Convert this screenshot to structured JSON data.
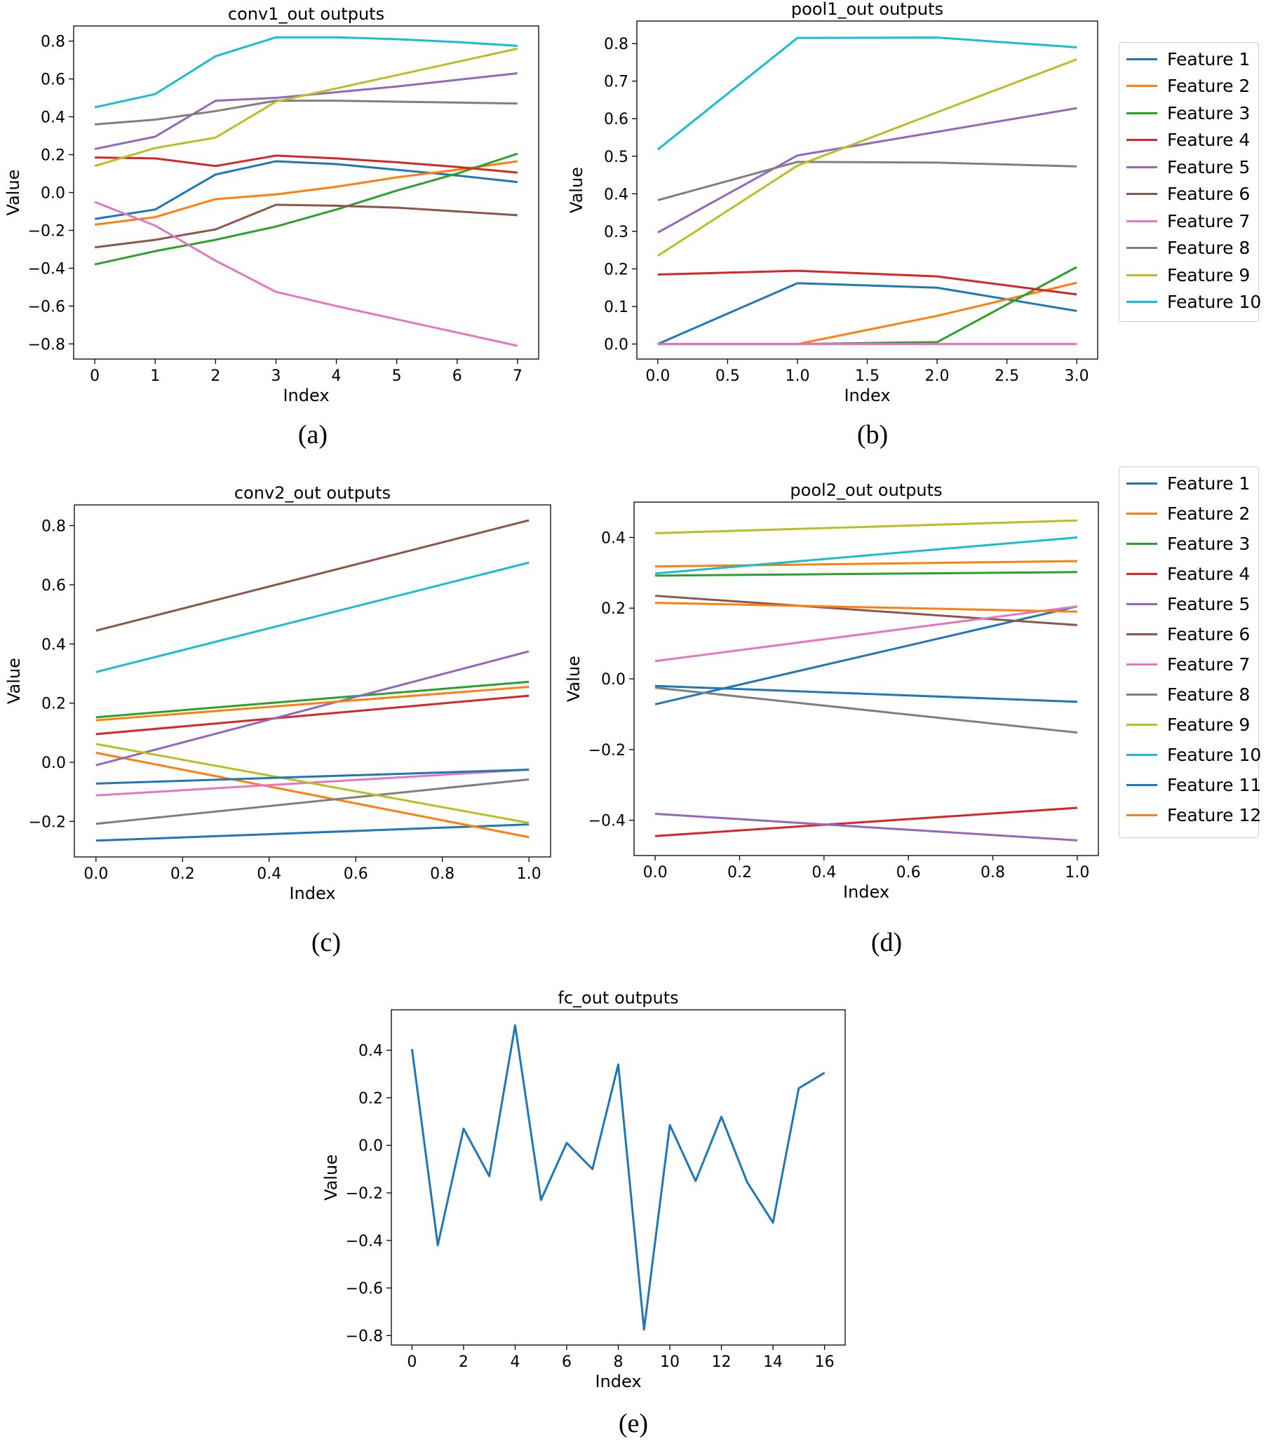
{
  "figure": {
    "colors": [
      "#1f77b4",
      "#ff7f0e",
      "#2ca02c",
      "#d62728",
      "#9467bd",
      "#8c564b",
      "#e377c2",
      "#7f7f7f",
      "#bcbd22",
      "#17becf",
      "#1f77b4",
      "#ff7f0e"
    ]
  },
  "captions": {
    "a": "(a)",
    "b": "(b)",
    "c": "(c)",
    "d": "(d)",
    "e": "(e)"
  },
  "chart_data": [
    {
      "id": "a",
      "type": "line",
      "title": "conv1_out outputs",
      "xlabel": "Index",
      "ylabel": "Value",
      "xlim": [
        -0.35,
        7.35
      ],
      "ylim": [
        -0.88,
        0.88
      ],
      "xticks": [
        0,
        1,
        2,
        3,
        4,
        5,
        6,
        7
      ],
      "xticklabels": [
        "0",
        "1",
        "2",
        "3",
        "4",
        "5",
        "6",
        "7"
      ],
      "yticks": [
        -0.8,
        -0.6,
        -0.4,
        -0.2,
        0.0,
        0.2,
        0.4,
        0.6,
        0.8
      ],
      "yticklabels": [
        "−0.8",
        "−0.6",
        "−0.4",
        "−0.2",
        "0.0",
        "0.2",
        "0.4",
        "0.6",
        "0.8"
      ],
      "x": [
        0,
        1,
        2,
        3,
        4,
        5,
        6,
        7
      ],
      "series": [
        {
          "values": [
            -0.14,
            -0.09,
            0.095,
            0.165,
            0.15,
            0.12,
            0.09,
            0.055
          ]
        },
        {
          "values": [
            -0.17,
            -0.13,
            -0.035,
            -0.01,
            0.03,
            0.08,
            0.12,
            0.165
          ]
        },
        {
          "values": [
            -0.38,
            -0.31,
            -0.25,
            -0.18,
            -0.09,
            0.01,
            0.1,
            0.205
          ]
        },
        {
          "values": [
            0.185,
            0.18,
            0.14,
            0.195,
            0.18,
            0.16,
            0.135,
            0.105
          ]
        },
        {
          "values": [
            0.23,
            0.295,
            0.485,
            0.5,
            0.53,
            0.56,
            0.595,
            0.63
          ]
        },
        {
          "values": [
            -0.29,
            -0.25,
            -0.195,
            -0.065,
            -0.07,
            -0.08,
            -0.1,
            -0.12
          ]
        },
        {
          "values": [
            -0.05,
            -0.175,
            -0.36,
            -0.525,
            -0.6,
            -0.67,
            -0.74,
            -0.81
          ]
        },
        {
          "values": [
            0.36,
            0.385,
            0.43,
            0.485,
            0.485,
            0.48,
            0.475,
            0.47
          ]
        },
        {
          "values": [
            0.14,
            0.235,
            0.29,
            0.48,
            0.55,
            0.62,
            0.69,
            0.76
          ]
        },
        {
          "values": [
            0.45,
            0.52,
            0.72,
            0.82,
            0.82,
            0.81,
            0.795,
            0.775
          ]
        }
      ]
    },
    {
      "id": "b",
      "type": "line",
      "title": "pool1_out outputs",
      "xlabel": "Index",
      "ylabel": "Value",
      "xlim": [
        -0.15,
        3.15
      ],
      "ylim": [
        -0.04,
        0.86
      ],
      "xticks": [
        0,
        0.5,
        1,
        1.5,
        2,
        2.5,
        3
      ],
      "xticklabels": [
        "0.0",
        "0.5",
        "1.0",
        "1.5",
        "2.0",
        "2.5",
        "3.0"
      ],
      "yticks": [
        0,
        0.1,
        0.2,
        0.3,
        0.4,
        0.5,
        0.6,
        0.7,
        0.8
      ],
      "yticklabels": [
        "0.0",
        "0.1",
        "0.2",
        "0.3",
        "0.4",
        "0.5",
        "0.6",
        "0.7",
        "0.8"
      ],
      "x": [
        0,
        1,
        2,
        3
      ],
      "legend": [
        "Feature 1",
        "Feature 2",
        "Feature 3",
        "Feature 4",
        "Feature 5",
        "Feature 6",
        "Feature 7",
        "Feature 8",
        "Feature 9",
        "Feature 10"
      ],
      "series": [
        {
          "name": "Feature 1",
          "values": [
            0.0,
            0.162,
            0.15,
            0.088
          ]
        },
        {
          "name": "Feature 2",
          "values": [
            0.0,
            0.0,
            0.075,
            0.163
          ]
        },
        {
          "name": "Feature 3",
          "values": [
            0.0,
            0.0,
            0.005,
            0.205
          ]
        },
        {
          "name": "Feature 4",
          "values": [
            0.185,
            0.195,
            0.18,
            0.132
          ]
        },
        {
          "name": "Feature 5",
          "values": [
            0.297,
            0.502,
            0.565,
            0.628
          ]
        },
        {
          "name": "Feature 6",
          "values": [
            0.0,
            0.0,
            0.0,
            0.0
          ]
        },
        {
          "name": "Feature 7",
          "values": [
            0.0,
            0.0,
            0.0,
            0.0
          ]
        },
        {
          "name": "Feature 8",
          "values": [
            0.383,
            0.485,
            0.483,
            0.473
          ]
        },
        {
          "name": "Feature 9",
          "values": [
            0.235,
            0.475,
            0.617,
            0.758
          ]
        },
        {
          "name": "Feature 10",
          "values": [
            0.518,
            0.815,
            0.816,
            0.79
          ]
        }
      ]
    },
    {
      "id": "c",
      "type": "line",
      "title": "conv2_out outputs",
      "xlabel": "Index",
      "ylabel": "Value",
      "xlim": [
        -0.05,
        1.05
      ],
      "ylim": [
        -0.32,
        0.87
      ],
      "xticks": [
        0,
        0.2,
        0.4,
        0.6,
        0.8,
        1.0
      ],
      "xticklabels": [
        "0.0",
        "0.2",
        "0.4",
        "0.6",
        "0.8",
        "1.0"
      ],
      "yticks": [
        -0.2,
        0.0,
        0.2,
        0.4,
        0.6,
        0.8
      ],
      "yticklabels": [
        "−0.2",
        "0.0",
        "0.2",
        "0.4",
        "0.6",
        "0.8"
      ],
      "x": [
        0,
        1
      ],
      "series": [
        {
          "values": [
            -0.265,
            -0.21
          ]
        },
        {
          "values": [
            0.032,
            -0.253
          ]
        },
        {
          "values": [
            0.152,
            0.272
          ]
        },
        {
          "values": [
            0.095,
            0.225
          ]
        },
        {
          "values": [
            -0.01,
            0.375
          ]
        },
        {
          "values": [
            0.445,
            0.818
          ]
        },
        {
          "values": [
            -0.112,
            -0.025
          ]
        },
        {
          "values": [
            -0.208,
            -0.058
          ]
        },
        {
          "values": [
            0.062,
            -0.205
          ]
        },
        {
          "values": [
            0.305,
            0.675
          ]
        },
        {
          "values": [
            -0.072,
            -0.025
          ]
        },
        {
          "values": [
            0.142,
            0.255
          ]
        }
      ]
    },
    {
      "id": "d",
      "type": "line",
      "title": "pool2_out outputs",
      "xlabel": "Index",
      "ylabel": "Value",
      "xlim": [
        -0.05,
        1.05
      ],
      "ylim": [
        -0.5,
        0.5
      ],
      "xticks": [
        0,
        0.2,
        0.4,
        0.6,
        0.8,
        1.0
      ],
      "xticklabels": [
        "0.0",
        "0.2",
        "0.4",
        "0.6",
        "0.8",
        "1.0"
      ],
      "yticks": [
        -0.4,
        -0.2,
        0.0,
        0.2,
        0.4
      ],
      "yticklabels": [
        "−0.4",
        "−0.2",
        "0.0",
        "0.2",
        "0.4"
      ],
      "x": [
        0,
        1
      ],
      "legend": [
        "Feature 1",
        "Feature 2",
        "Feature 3",
        "Feature 4",
        "Feature 5",
        "Feature 6",
        "Feature 7",
        "Feature 8",
        "Feature 9",
        "Feature 10",
        "Feature 11",
        "Feature 12"
      ],
      "series": [
        {
          "name": "Feature 1",
          "values": [
            -0.072,
            0.205
          ]
        },
        {
          "name": "Feature 2",
          "values": [
            0.318,
            0.333
          ]
        },
        {
          "name": "Feature 3",
          "values": [
            0.292,
            0.302
          ]
        },
        {
          "name": "Feature 4",
          "values": [
            -0.445,
            -0.365
          ]
        },
        {
          "name": "Feature 5",
          "values": [
            -0.382,
            -0.457
          ]
        },
        {
          "name": "Feature 6",
          "values": [
            0.235,
            0.152
          ]
        },
        {
          "name": "Feature 7",
          "values": [
            0.05,
            0.205
          ]
        },
        {
          "name": "Feature 8",
          "values": [
            -0.025,
            -0.152
          ]
        },
        {
          "name": "Feature 9",
          "values": [
            0.412,
            0.448
          ]
        },
        {
          "name": "Feature 10",
          "values": [
            0.298,
            0.4
          ]
        },
        {
          "name": "Feature 11",
          "values": [
            -0.02,
            -0.065
          ]
        },
        {
          "name": "Feature 12",
          "values": [
            0.215,
            0.19
          ]
        }
      ]
    },
    {
      "id": "e",
      "type": "line",
      "title": "fc_out outputs",
      "xlabel": "Index",
      "ylabel": "Value",
      "xlim": [
        -0.8,
        16.8
      ],
      "ylim": [
        -0.84,
        0.57
      ],
      "xticks": [
        0,
        2,
        4,
        6,
        8,
        10,
        12,
        14,
        16
      ],
      "xticklabels": [
        "0",
        "2",
        "4",
        "6",
        "8",
        "10",
        "12",
        "14",
        "16"
      ],
      "yticks": [
        -0.8,
        -0.6,
        -0.4,
        -0.2,
        0.0,
        0.2,
        0.4
      ],
      "yticklabels": [
        "−0.8",
        "−0.6",
        "−0.4",
        "−0.2",
        "0.0",
        "0.2",
        "0.4"
      ],
      "x": [
        0,
        1,
        2,
        3,
        4,
        5,
        6,
        7,
        8,
        9,
        10,
        11,
        12,
        13,
        14,
        15,
        16
      ],
      "series": [
        {
          "values": [
            0.405,
            -0.42,
            0.07,
            -0.13,
            0.505,
            -0.23,
            0.01,
            -0.1,
            0.34,
            -0.775,
            0.085,
            -0.15,
            0.12,
            -0.155,
            -0.325,
            0.24,
            0.305
          ]
        }
      ]
    }
  ]
}
